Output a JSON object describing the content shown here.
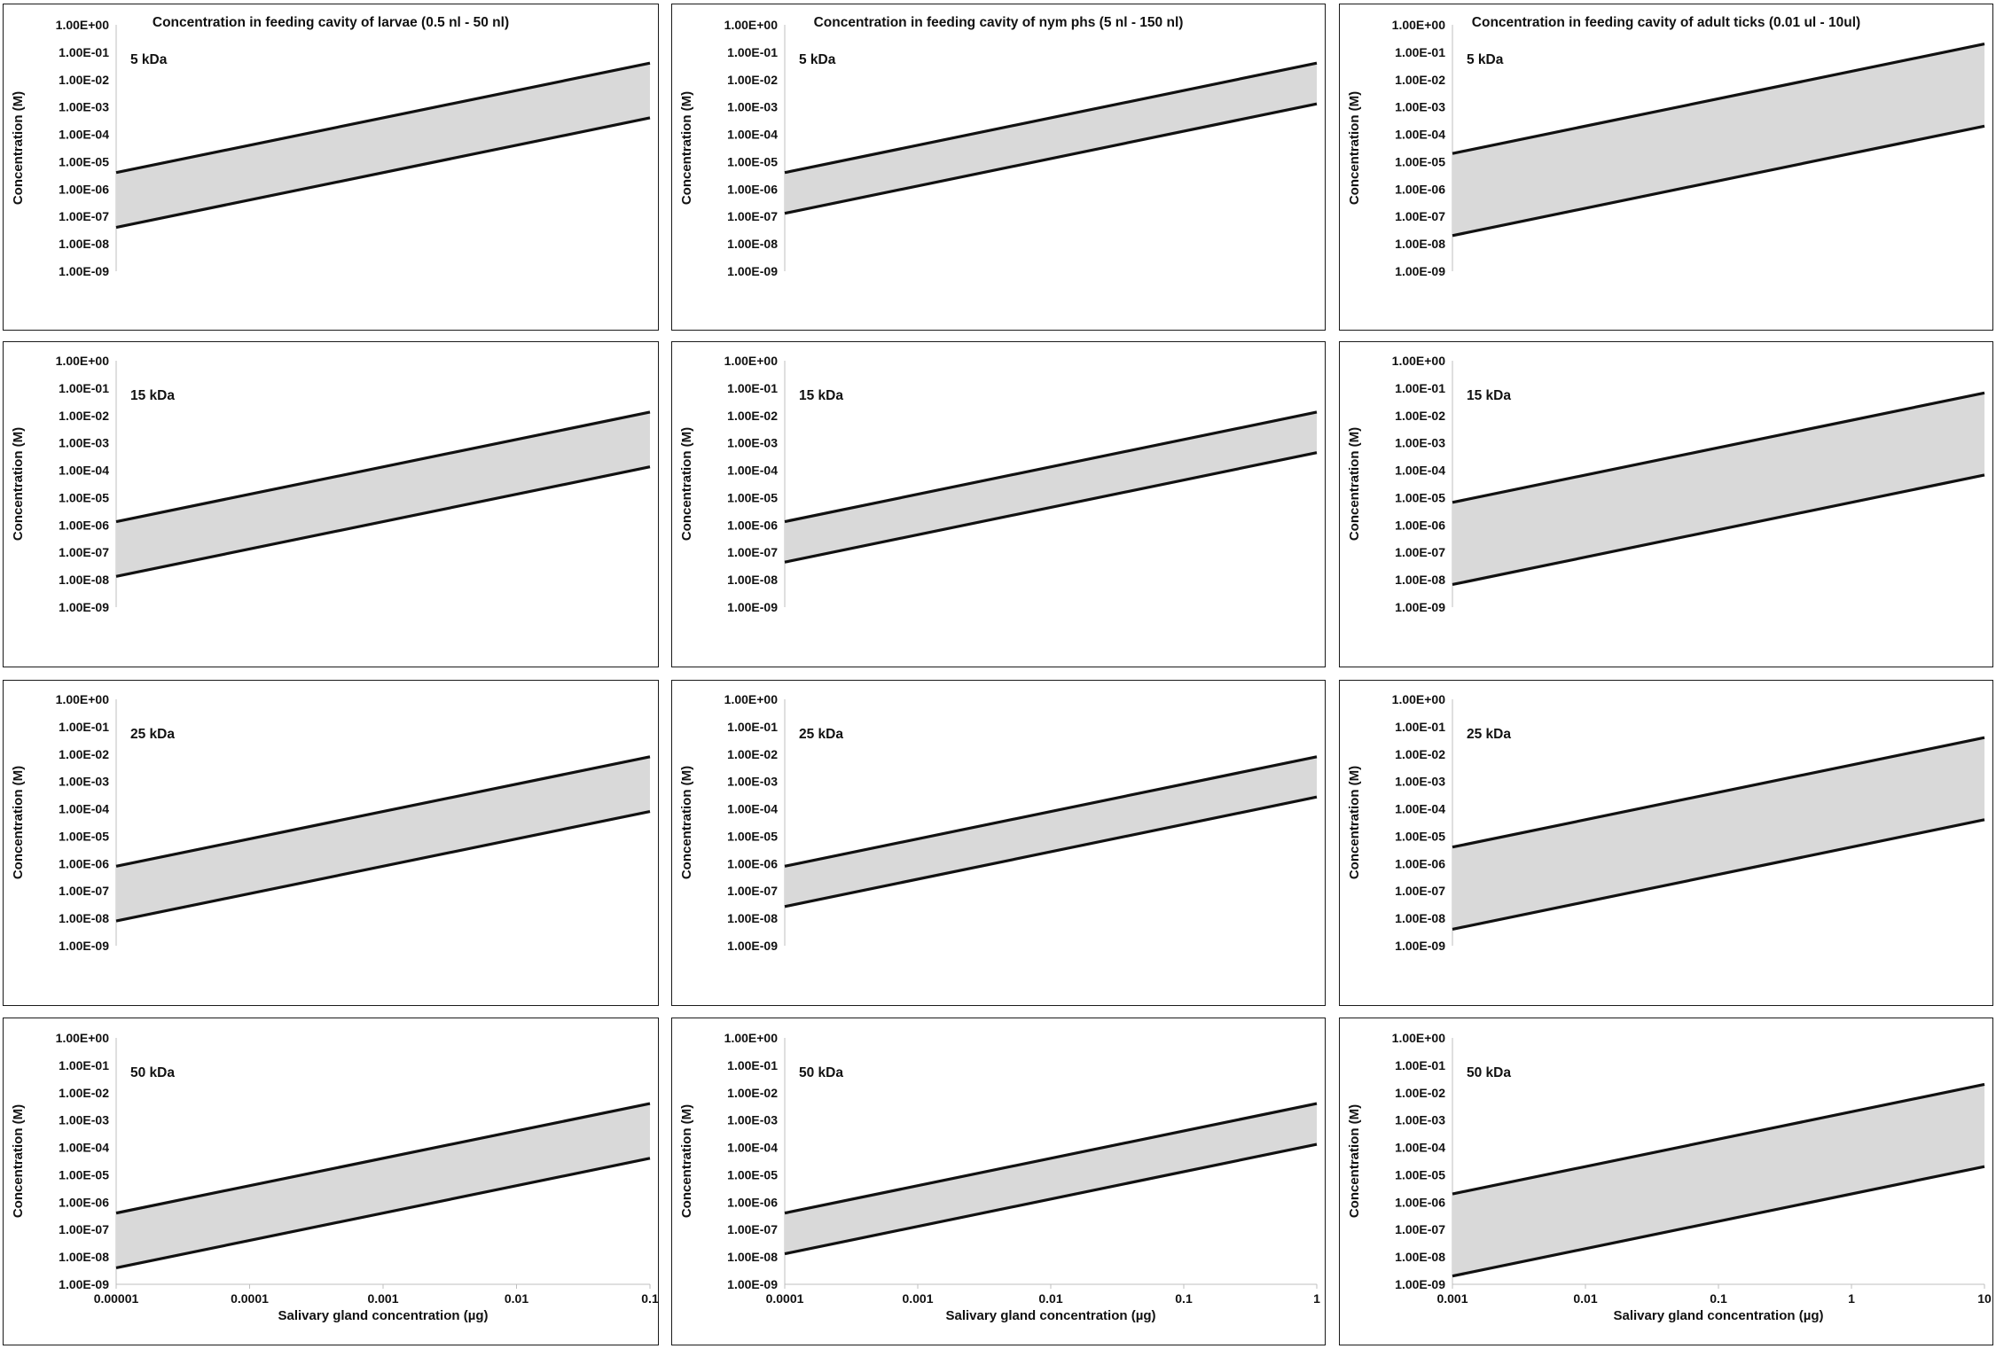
{
  "figure": {
    "ytick_labels": [
      "1.00E+00",
      "1.00E-01",
      "1.00E-02",
      "1.00E-03",
      "1.00E-04",
      "1.00E-05",
      "1.00E-06",
      "1.00E-07",
      "1.00E-08",
      "1.00E-09"
    ],
    "colors": {
      "band_fill": "#d9d9d9",
      "line": "#111111",
      "axis": "#bfbfbf"
    }
  },
  "chart_data": [
    {
      "type": "area",
      "row": 0,
      "col": 0,
      "title": "Concentration in feeding cavity of larvae (0.5 nl - 50 nl)",
      "label": "5 kDa",
      "ylabel": "Concentration (M)",
      "xlabel": "",
      "x_scale": "log",
      "y_scale": "log",
      "xlim": [
        1e-05,
        0.1
      ],
      "ylim": [
        1e-09,
        1
      ],
      "x_ticks": [],
      "series": [
        {
          "values": [
            4e-06,
            0.04
          ]
        },
        {
          "values": [
            4e-08,
            0.0004
          ]
        }
      ]
    },
    {
      "type": "area",
      "row": 0,
      "col": 1,
      "title": "Concentration in feeding cavity of nym phs (5 nl - 150 nl)",
      "label": "5 kDa",
      "ylabel": "Concentration (M)",
      "xlabel": "",
      "x_scale": "log",
      "y_scale": "log",
      "xlim": [
        0.0001,
        1
      ],
      "ylim": [
        1e-09,
        1
      ],
      "x_ticks": [],
      "series": [
        {
          "values": [
            4e-06,
            0.04
          ]
        },
        {
          "values": [
            1.3e-07,
            0.0013
          ]
        }
      ]
    },
    {
      "type": "area",
      "row": 0,
      "col": 2,
      "title": "Concentration in feeding cavity of adult ticks (0.01 ul - 10ul)",
      "label": "5 kDa",
      "ylabel": "Concentration (M)",
      "xlabel": "",
      "x_scale": "log",
      "y_scale": "log",
      "xlim": [
        0.001,
        10
      ],
      "ylim": [
        1e-09,
        1
      ],
      "x_ticks": [],
      "series": [
        {
          "values": [
            2e-05,
            0.2
          ]
        },
        {
          "values": [
            2e-08,
            0.0002
          ]
        }
      ]
    },
    {
      "type": "area",
      "row": 1,
      "col": 0,
      "title": "",
      "label": "15 kDa",
      "ylabel": "Concentration (M)",
      "xlabel": "",
      "x_scale": "log",
      "y_scale": "log",
      "xlim": [
        1e-05,
        0.1
      ],
      "ylim": [
        1e-09,
        1
      ],
      "x_ticks": [],
      "series": [
        {
          "values": [
            1.33e-06,
            0.0133
          ]
        },
        {
          "values": [
            1.33e-08,
            0.000133
          ]
        }
      ]
    },
    {
      "type": "area",
      "row": 1,
      "col": 1,
      "title": "",
      "label": "15 kDa",
      "ylabel": "Concentration (M)",
      "xlabel": "",
      "x_scale": "log",
      "y_scale": "log",
      "xlim": [
        0.0001,
        1
      ],
      "ylim": [
        1e-09,
        1
      ],
      "x_ticks": [],
      "series": [
        {
          "values": [
            1.33e-06,
            0.0133
          ]
        },
        {
          "values": [
            4.4e-08,
            0.00044
          ]
        }
      ]
    },
    {
      "type": "area",
      "row": 1,
      "col": 2,
      "title": "",
      "label": "15 kDa",
      "ylabel": "Concentration (M)",
      "xlabel": "",
      "x_scale": "log",
      "y_scale": "log",
      "xlim": [
        0.001,
        10
      ],
      "ylim": [
        1e-09,
        1
      ],
      "x_ticks": [],
      "series": [
        {
          "values": [
            6.7e-06,
            0.067
          ]
        },
        {
          "values": [
            6.7e-09,
            6.7e-05
          ]
        }
      ]
    },
    {
      "type": "area",
      "row": 2,
      "col": 0,
      "title": "",
      "label": "25 kDa",
      "ylabel": "Concentration (M)",
      "xlabel": "",
      "x_scale": "log",
      "y_scale": "log",
      "xlim": [
        1e-05,
        0.1
      ],
      "ylim": [
        1e-09,
        1
      ],
      "x_ticks": [],
      "series": [
        {
          "values": [
            8e-07,
            0.008
          ]
        },
        {
          "values": [
            8e-09,
            8e-05
          ]
        }
      ]
    },
    {
      "type": "area",
      "row": 2,
      "col": 1,
      "title": "",
      "label": "25 kDa",
      "ylabel": "Concentration (M)",
      "xlabel": "",
      "x_scale": "log",
      "y_scale": "log",
      "xlim": [
        0.0001,
        1
      ],
      "ylim": [
        1e-09,
        1
      ],
      "x_ticks": [],
      "series": [
        {
          "values": [
            8e-07,
            0.008
          ]
        },
        {
          "values": [
            2.7e-08,
            0.00027
          ]
        }
      ]
    },
    {
      "type": "area",
      "row": 2,
      "col": 2,
      "title": "",
      "label": "25 kDa",
      "ylabel": "Concentration (M)",
      "xlabel": "",
      "x_scale": "log",
      "y_scale": "log",
      "xlim": [
        0.001,
        10
      ],
      "ylim": [
        1e-09,
        1
      ],
      "x_ticks": [],
      "series": [
        {
          "values": [
            4e-06,
            0.04
          ]
        },
        {
          "values": [
            4e-09,
            4e-05
          ]
        }
      ]
    },
    {
      "type": "area",
      "row": 3,
      "col": 0,
      "title": "",
      "label": "50 kDa",
      "ylabel": "Concentration (M)",
      "xlabel": "Salivary gland concentration (µg)",
      "x_scale": "log",
      "y_scale": "log",
      "xlim": [
        1e-05,
        0.1
      ],
      "ylim": [
        1e-09,
        1
      ],
      "x_ticks": [
        "0.00001",
        "0.0001",
        "0.001",
        "0.01",
        "0.1"
      ],
      "series": [
        {
          "values": [
            4e-07,
            0.004
          ]
        },
        {
          "values": [
            4e-09,
            4e-05
          ]
        }
      ]
    },
    {
      "type": "area",
      "row": 3,
      "col": 1,
      "title": "",
      "label": "50 kDa",
      "ylabel": "Concentration (M)",
      "xlabel": "Salivary gland concentration (µg)",
      "x_scale": "log",
      "y_scale": "log",
      "xlim": [
        0.0001,
        1
      ],
      "ylim": [
        1e-09,
        1
      ],
      "x_ticks": [
        "0.0001",
        "0.001",
        "0.01",
        "0.1",
        "1"
      ],
      "series": [
        {
          "values": [
            4e-07,
            0.004
          ]
        },
        {
          "values": [
            1.3e-08,
            0.00013
          ]
        }
      ]
    },
    {
      "type": "area",
      "row": 3,
      "col": 2,
      "title": "",
      "label": "50 kDa",
      "ylabel": "Concentration (M)",
      "xlabel": "Salivary gland concentration (µg)",
      "x_scale": "log",
      "y_scale": "log",
      "xlim": [
        0.001,
        10
      ],
      "ylim": [
        1e-09,
        1
      ],
      "x_ticks": [
        "0.001",
        "0.01",
        "0.1",
        "1",
        "10"
      ],
      "series": [
        {
          "values": [
            2e-06,
            0.02
          ]
        },
        {
          "values": [
            2e-09,
            2e-05
          ]
        }
      ]
    }
  ]
}
